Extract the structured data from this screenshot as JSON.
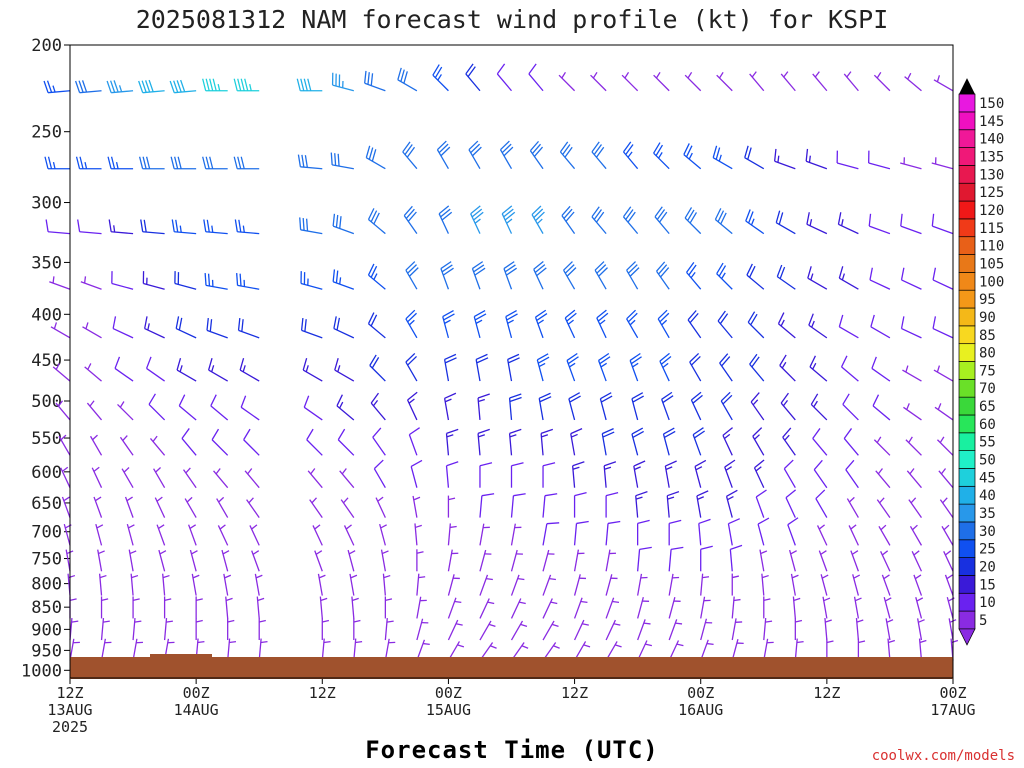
{
  "chart_data": {
    "type": "wind_barbs",
    "title": "2025081312 NAM forecast wind profile (kt) for KSPI",
    "xlabel": "Forecast Time (UTC)",
    "credit": "coolwx.com/models",
    "y_axis_ticks": [
      "200",
      "250",
      "300",
      "350",
      "400",
      "450",
      "500",
      "550",
      "600",
      "650",
      "700",
      "750",
      "800",
      "850",
      "900",
      "950",
      "1000"
    ],
    "x_axis_ticks": [
      {
        "hour": 0,
        "line1": "12Z",
        "line2": "13AUG",
        "line3": "2025"
      },
      {
        "hour": 12,
        "line1": "00Z",
        "line2": "14AUG",
        "line3": ""
      },
      {
        "hour": 24,
        "line1": "12Z",
        "line2": "",
        "line3": ""
      },
      {
        "hour": 36,
        "line1": "00Z",
        "line2": "15AUG",
        "line3": ""
      },
      {
        "hour": 48,
        "line1": "12Z",
        "line2": "",
        "line3": ""
      },
      {
        "hour": 60,
        "line1": "00Z",
        "line2": "16AUG",
        "line3": ""
      },
      {
        "hour": 72,
        "line1": "12Z",
        "line2": "",
        "line3": ""
      },
      {
        "hour": 84,
        "line1": "00Z",
        "line2": "17AUG",
        "line3": ""
      }
    ],
    "x_range_hours": [
      0,
      84
    ],
    "y_range_hpa": [
      200,
      1020
    ],
    "y_scale": "log",
    "colorbar": {
      "levels": [
        "5",
        "10",
        "15",
        "20",
        "25",
        "30",
        "35",
        "40",
        "45",
        "50",
        "55",
        "60",
        "65",
        "70",
        "75",
        "80",
        "85",
        "90",
        "95",
        "100",
        "105",
        "110",
        "115",
        "120",
        "125",
        "130",
        "135",
        "140",
        "145",
        "150"
      ],
      "colors": [
        "#8a2be2",
        "#6a22f0",
        "#3a1ad8",
        "#1830e0",
        "#1050f0",
        "#1f6fe8",
        "#2898ea",
        "#20b0e8",
        "#1ed0dc",
        "#20f0c8",
        "#19f0a0",
        "#28e65a",
        "#3ad83a",
        "#6ae028",
        "#a8f020",
        "#e8f020",
        "#f8d820",
        "#f4b818",
        "#f49818",
        "#f08818",
        "#e87818",
        "#e86018",
        "#f03a18",
        "#f01818",
        "#e01830",
        "#e81850",
        "#f01878",
        "#f01898",
        "#f010c0",
        "#e818e0"
      ]
    },
    "barb_times_hours": [
      0,
      3,
      6,
      9,
      12,
      15,
      18,
      24,
      27,
      30,
      33,
      36,
      39,
      42,
      45,
      48,
      51,
      54,
      57,
      60,
      63,
      66,
      69,
      72,
      75,
      78,
      81,
      84
    ],
    "barb_levels_hpa": [
      225,
      275,
      325,
      375,
      425,
      475,
      525,
      575,
      625,
      675,
      725,
      775,
      825,
      875,
      925,
      975
    ],
    "speeds_kt": [
      [
        25,
        30,
        35,
        40,
        40,
        45,
        45,
        40,
        35,
        30,
        30,
        25,
        20,
        10,
        10,
        5,
        5,
        5,
        5,
        5,
        5,
        5,
        5,
        5,
        5,
        5,
        5,
        5
      ],
      [
        25,
        25,
        25,
        30,
        30,
        30,
        30,
        30,
        30,
        30,
        30,
        30,
        30,
        30,
        30,
        30,
        30,
        25,
        25,
        25,
        25,
        20,
        15,
        15,
        10,
        10,
        5,
        5
      ],
      [
        10,
        10,
        15,
        20,
        25,
        25,
        25,
        30,
        30,
        30,
        30,
        30,
        35,
        35,
        35,
        30,
        30,
        30,
        30,
        30,
        30,
        25,
        20,
        15,
        15,
        10,
        10,
        10
      ],
      [
        5,
        5,
        10,
        15,
        20,
        25,
        25,
        25,
        25,
        25,
        30,
        30,
        30,
        30,
        30,
        30,
        30,
        30,
        30,
        25,
        25,
        20,
        20,
        15,
        15,
        10,
        10,
        10
      ],
      [
        5,
        5,
        10,
        15,
        20,
        20,
        20,
        20,
        20,
        20,
        25,
        25,
        25,
        25,
        25,
        25,
        25,
        25,
        25,
        20,
        20,
        20,
        15,
        15,
        10,
        10,
        10,
        10
      ],
      [
        5,
        5,
        10,
        10,
        15,
        15,
        15,
        15,
        15,
        20,
        20,
        20,
        20,
        20,
        25,
        25,
        25,
        25,
        25,
        20,
        20,
        20,
        15,
        15,
        10,
        10,
        5,
        5
      ],
      [
        5,
        5,
        5,
        10,
        10,
        10,
        10,
        10,
        15,
        15,
        15,
        15,
        15,
        20,
        20,
        20,
        20,
        20,
        20,
        20,
        20,
        15,
        15,
        15,
        10,
        10,
        5,
        5
      ],
      [
        5,
        5,
        5,
        5,
        10,
        10,
        10,
        10,
        10,
        10,
        10,
        15,
        15,
        15,
        15,
        15,
        20,
        20,
        20,
        20,
        15,
        15,
        15,
        10,
        10,
        5,
        5,
        5
      ],
      [
        5,
        5,
        5,
        5,
        5,
        5,
        5,
        5,
        5,
        10,
        10,
        10,
        10,
        10,
        10,
        15,
        15,
        15,
        15,
        15,
        15,
        15,
        10,
        10,
        10,
        5,
        5,
        5
      ],
      [
        5,
        5,
        5,
        5,
        5,
        5,
        5,
        5,
        5,
        5,
        5,
        5,
        10,
        10,
        10,
        10,
        10,
        15,
        15,
        15,
        15,
        10,
        10,
        10,
        5,
        5,
        5,
        5
      ],
      [
        5,
        5,
        5,
        5,
        5,
        5,
        5,
        5,
        5,
        5,
        5,
        5,
        5,
        5,
        10,
        10,
        10,
        10,
        10,
        10,
        10,
        10,
        10,
        5,
        5,
        5,
        5,
        5
      ],
      [
        5,
        5,
        5,
        5,
        5,
        5,
        5,
        5,
        5,
        5,
        5,
        5,
        5,
        5,
        5,
        5,
        5,
        10,
        10,
        10,
        10,
        5,
        5,
        5,
        5,
        5,
        5,
        5
      ],
      [
        5,
        5,
        5,
        5,
        5,
        5,
        5,
        5,
        5,
        5,
        5,
        5,
        5,
        5,
        5,
        5,
        5,
        5,
        5,
        5,
        5,
        5,
        5,
        5,
        5,
        5,
        5,
        5
      ],
      [
        5,
        5,
        5,
        5,
        5,
        5,
        5,
        5,
        5,
        5,
        5,
        5,
        5,
        5,
        5,
        5,
        5,
        5,
        5,
        5,
        5,
        5,
        5,
        5,
        5,
        5,
        5,
        5
      ],
      [
        5,
        5,
        5,
        5,
        5,
        5,
        5,
        5,
        5,
        5,
        5,
        5,
        5,
        5,
        5,
        5,
        5,
        5,
        5,
        5,
        5,
        5,
        5,
        5,
        5,
        5,
        5,
        5
      ],
      [
        5,
        5,
        5,
        5,
        5,
        5,
        5,
        5,
        5,
        5,
        5,
        5,
        5,
        5,
        5,
        5,
        5,
        5,
        5,
        5,
        5,
        5,
        5,
        5,
        5,
        5,
        5,
        5
      ]
    ],
    "directions_deg": [
      [
        265,
        265,
        265,
        265,
        265,
        270,
        270,
        270,
        285,
        290,
        300,
        315,
        320,
        320,
        320,
        315,
        315,
        315,
        315,
        315,
        315,
        320,
        320,
        320,
        320,
        315,
        310,
        300
      ],
      [
        270,
        270,
        270,
        270,
        270,
        270,
        270,
        275,
        280,
        300,
        320,
        330,
        330,
        330,
        325,
        320,
        320,
        320,
        315,
        310,
        300,
        300,
        290,
        290,
        285,
        285,
        285,
        285
      ],
      [
        275,
        275,
        275,
        275,
        275,
        275,
        275,
        280,
        290,
        310,
        325,
        335,
        335,
        335,
        330,
        325,
        320,
        320,
        320,
        315,
        310,
        305,
        300,
        295,
        295,
        290,
        290,
        290
      ],
      [
        290,
        290,
        285,
        285,
        285,
        280,
        280,
        285,
        290,
        310,
        330,
        340,
        340,
        340,
        335,
        330,
        330,
        330,
        325,
        320,
        315,
        310,
        305,
        300,
        300,
        295,
        295,
        295
      ],
      [
        300,
        300,
        295,
        295,
        295,
        290,
        290,
        290,
        295,
        310,
        330,
        345,
        345,
        345,
        340,
        335,
        335,
        330,
        330,
        325,
        320,
        315,
        310,
        305,
        300,
        300,
        295,
        295
      ],
      [
        310,
        310,
        305,
        305,
        300,
        300,
        300,
        300,
        300,
        315,
        330,
        350,
        350,
        350,
        345,
        340,
        340,
        340,
        335,
        330,
        325,
        320,
        315,
        310,
        310,
        305,
        300,
        300
      ],
      [
        320,
        320,
        315,
        315,
        310,
        310,
        305,
        305,
        310,
        320,
        335,
        350,
        355,
        355,
        350,
        345,
        345,
        345,
        340,
        335,
        330,
        325,
        320,
        315,
        315,
        310,
        305,
        305
      ],
      [
        330,
        330,
        325,
        320,
        320,
        315,
        315,
        315,
        315,
        325,
        340,
        355,
        355,
        355,
        355,
        350,
        350,
        345,
        345,
        340,
        335,
        330,
        325,
        320,
        320,
        315,
        315,
        315
      ],
      [
        335,
        335,
        330,
        330,
        325,
        320,
        320,
        320,
        320,
        330,
        345,
        355,
        360,
        360,
        360,
        355,
        355,
        350,
        350,
        345,
        340,
        335,
        330,
        325,
        325,
        320,
        320,
        320
      ],
      [
        340,
        340,
        340,
        335,
        330,
        330,
        325,
        325,
        325,
        335,
        350,
        360,
        5,
        5,
        5,
        360,
        360,
        355,
        355,
        350,
        345,
        340,
        335,
        330,
        330,
        325,
        325,
        325
      ],
      [
        345,
        345,
        345,
        340,
        340,
        335,
        335,
        335,
        335,
        345,
        355,
        5,
        10,
        10,
        10,
        5,
        5,
        360,
        360,
        355,
        350,
        345,
        340,
        335,
        335,
        330,
        330,
        330
      ],
      [
        350,
        350,
        350,
        345,
        345,
        345,
        340,
        340,
        345,
        350,
        360,
        10,
        15,
        15,
        15,
        10,
        10,
        5,
        5,
        360,
        355,
        350,
        345,
        340,
        340,
        335,
        335,
        335
      ],
      [
        355,
        355,
        355,
        355,
        350,
        350,
        350,
        350,
        350,
        355,
        5,
        15,
        20,
        20,
        20,
        15,
        15,
        10,
        10,
        5,
        360,
        355,
        350,
        345,
        345,
        340,
        340,
        340
      ],
      [
        360,
        360,
        360,
        360,
        360,
        355,
        355,
        355,
        355,
        360,
        10,
        20,
        25,
        25,
        25,
        20,
        20,
        15,
        15,
        10,
        5,
        360,
        355,
        350,
        350,
        345,
        345,
        345
      ],
      [
        5,
        5,
        5,
        5,
        360,
        360,
        360,
        360,
        360,
        5,
        15,
        25,
        30,
        30,
        30,
        25,
        25,
        20,
        20,
        15,
        10,
        5,
        360,
        355,
        355,
        350,
        350,
        350
      ],
      [
        10,
        10,
        10,
        10,
        5,
        5,
        5,
        5,
        5,
        10,
        20,
        30,
        35,
        35,
        35,
        30,
        30,
        25,
        25,
        20,
        15,
        10,
        5,
        360,
        360,
        355,
        355,
        355
      ]
    ]
  }
}
